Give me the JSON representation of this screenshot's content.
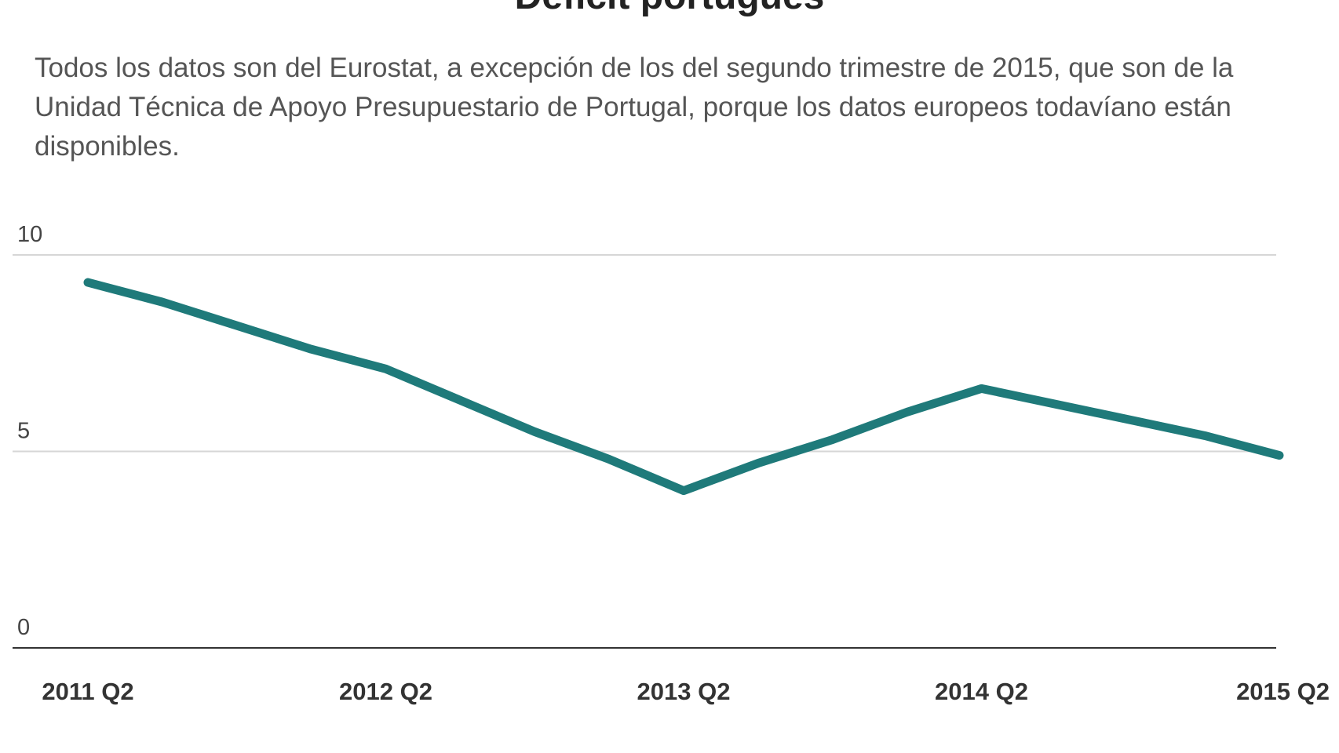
{
  "chart_data": {
    "type": "line",
    "title": "Déficit portugués",
    "subtitle": "Todos los datos son del Eurostat, a excepción de los del segundo trimestre de 2015, que son de la Unidad Técnica de Apoyo Presupuestario de Portugal, porque los datos europeos todavíano están disponibles.",
    "categories": [
      "2011 Q2",
      "2012 Q2",
      "2013 Q2",
      "2014 Q2",
      "2015 Q2"
    ],
    "x": [
      2011.25,
      2011.5,
      2011.75,
      2012.0,
      2012.25,
      2012.5,
      2012.75,
      2013.0,
      2013.25,
      2013.5,
      2013.75,
      2014.0,
      2014.25,
      2014.5,
      2014.75,
      2015.0,
      2015.25
    ],
    "series": [
      {
        "name": "Déficit",
        "color": "#1f7a7a",
        "values": [
          9.3,
          8.8,
          8.2,
          7.6,
          7.1,
          6.3,
          5.5,
          4.8,
          4.0,
          4.7,
          5.3,
          6.0,
          6.6,
          6.2,
          5.8,
          5.4,
          4.9
        ]
      }
    ],
    "yticks": [
      "10",
      "5",
      "0"
    ],
    "ytick_values": [
      10,
      5,
      0
    ],
    "ylim": [
      0,
      10
    ],
    "xlim": [
      2011.25,
      2015.25
    ],
    "xlabel": "",
    "ylabel": "",
    "grid": true
  }
}
